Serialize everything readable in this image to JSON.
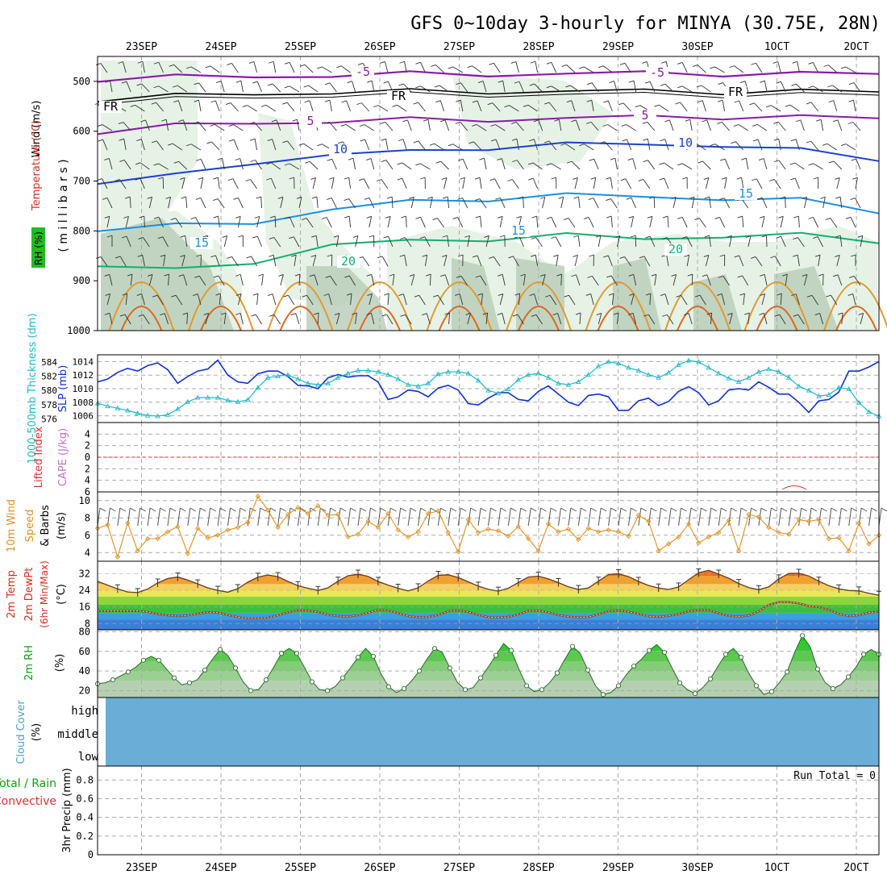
{
  "title": "GFS 0~10day 3-hourly for MINYA (30.75E, 28N)",
  "colors": {
    "grid": "#aaaaaa",
    "slp": "#1030d0",
    "thickness": "#20b8c8",
    "cape": "#c070d0",
    "li": "#e03030",
    "wind": "#e09020",
    "rh": "#10a010",
    "cloud": "#6aaed8",
    "temp_label": "#d03020",
    "dewpt_label": "#e03030",
    "profile_neg5": "#8a1aa8",
    "profile_fr": "#000000",
    "profile_10": "#1a40d0",
    "profile_15": "#1a90e0",
    "profile_20": "#10b070"
  },
  "chart_data": [
    {
      "id": "profile",
      "type": "contour",
      "title": "Temperature / RH / Wind profile",
      "xlabels_top": [
        "23SEP",
        "24SEP",
        "25SEP",
        "26SEP",
        "27SEP",
        "28SEP",
        "29SEP",
        "30SEP",
        "1OCT",
        "2OCT"
      ],
      "xlabels_top_text": [
        "23SEP",
        "24SEP",
        "25SEP",
        "26SEP",
        "27SEP",
        "28SEP",
        "29SEP",
        "30SEP",
        "1OCT",
        "2OCT"
      ],
      "ylabel_rh": "RH (%)",
      "ylabel_temp": "Temperature (°C)",
      "ylabel_wind": "Wind (m/s)",
      "ylabel_pressure": "( m i l l i b a r s )",
      "yticks": [
        "500",
        "600",
        "700",
        "800",
        "900",
        "1000"
      ],
      "ylim": [
        1000,
        450
      ],
      "contour_labels": [
        {
          "text": "-5",
          "level": -5
        },
        {
          "text": "-5",
          "level": -5
        },
        {
          "text": "FR",
          "level": 0
        },
        {
          "text": "FR",
          "level": 0
        },
        {
          "text": "FR",
          "level": 0
        },
        {
          "text": "5",
          "level": 5
        },
        {
          "text": "5",
          "level": 5
        },
        {
          "text": "10",
          "level": 10
        },
        {
          "text": "10",
          "level": 10
        },
        {
          "text": "15",
          "level": 15
        },
        {
          "text": "15",
          "level": 15
        },
        {
          "text": "15",
          "level": 15
        },
        {
          "text": "20",
          "level": 20
        },
        {
          "text": "20",
          "level": 20
        }
      ],
      "isotherm_levels_mb": {
        "m5": [
          495,
          492,
          490,
          488,
          486,
          485,
          485,
          484,
          484,
          485,
          486
        ],
        "fr": [
          535,
          530,
          525,
          522,
          521,
          520,
          520,
          520,
          520,
          520,
          522
        ],
        "p5": [
          600,
          590,
          583,
          580,
          578,
          576,
          574,
          572,
          570,
          572,
          575
        ],
        "p10": [
          705,
          690,
          660,
          650,
          640,
          632,
          628,
          625,
          628,
          640,
          655
        ],
        "p15": [
          800,
          790,
          780,
          760,
          740,
          735,
          730,
          730,
          735,
          740,
          760
        ],
        "p20": [
          870,
          880,
          860,
          830,
          820,
          815,
          810,
          815,
          810,
          810,
          820
        ]
      }
    },
    {
      "id": "slp",
      "type": "line",
      "ylabel_left": "1000-500mb Thickness (dm)",
      "ylabel_right": "SLP (mb)",
      "yticks_left": [
        "576",
        "578",
        "580",
        "582",
        "584"
      ],
      "yticks_right": [
        "1006",
        "1008",
        "1010",
        "1012",
        "1014"
      ],
      "ylim_slp": [
        1005,
        1015
      ],
      "ylim_thickness": [
        575.5,
        585
      ],
      "series": [
        {
          "name": "SLP (mb)",
          "values": [
            1011,
            1011.4,
            1012.4,
            1013,
            1012.6,
            1013.4,
            1013.8,
            1012.8,
            1010.8,
            1011.8,
            1012.6,
            1012.9,
            1014.2,
            1012,
            1011,
            1010.8,
            1012.2,
            1012.6,
            1012.6,
            1011.8,
            1010.5,
            1010.4,
            1010,
            1011.6,
            1012.1,
            1011.7,
            1011.9,
            1011.9,
            1011,
            1008.4,
            1008.8,
            1009.8,
            1009.6,
            1008.8,
            1010.1,
            1010.5,
            1009.8,
            1007.8,
            1007.6,
            1008.6,
            1009.4,
            1009.4,
            1008.4,
            1008.2,
            1009.6,
            1010.4,
            1009.2,
            1008,
            1007.5,
            1009,
            1009.2,
            1008.8,
            1006.8,
            1006.8,
            1008.2,
            1008.6,
            1007.5,
            1008.1,
            1009.6,
            1010.3,
            1009.4,
            1007.6,
            1008.2,
            1009.8,
            1010,
            1009.8,
            1011,
            1010.2,
            1009.2,
            1009.2,
            1008,
            1006.5,
            1008.2,
            1008.4,
            1009.5,
            1012.6,
            1012.6,
            1013.2,
            1014
          ]
        },
        {
          "name": "Thickness (dm)",
          "values": [
            578.2,
            577.8,
            577.5,
            577.2,
            576.8,
            576.5,
            576.4,
            576.6,
            577.4,
            578.4,
            579,
            579,
            579,
            578.6,
            578.4,
            578.7,
            580.4,
            581.8,
            582,
            582.2,
            581.6,
            581,
            580.8,
            581,
            581.8,
            582.4,
            582.8,
            582.8,
            582.6,
            582.2,
            581.6,
            580.8,
            580.6,
            581,
            582.3,
            582.6,
            582.6,
            582.4,
            581.4,
            580,
            579.6,
            580.2,
            581.5,
            582.2,
            582.4,
            581.8,
            581,
            580.8,
            581.2,
            582.2,
            583.4,
            584,
            583.8,
            583.2,
            582.8,
            582.2,
            581.8,
            582.5,
            583.6,
            584.2,
            584,
            583.2,
            582.4,
            581.7,
            581.2,
            581.8,
            582.6,
            583,
            582.6,
            581.8,
            580.6,
            580,
            579.2,
            579.4,
            580.4,
            580.2,
            578.3,
            577,
            576.4
          ]
        }
      ]
    },
    {
      "id": "cape",
      "type": "line",
      "ylabel_left": "Lifted Index",
      "ylabel_right": "CAPE (J/kg)",
      "yticks": [
        "-4",
        "-2",
        "0",
        "2",
        "4",
        "6"
      ],
      "yticks_text": [
        "4",
        "2",
        "0",
        "2",
        "4",
        "6"
      ],
      "ylim": [
        -6,
        6
      ]
    },
    {
      "id": "wind",
      "type": "line",
      "ylabel": "10m Wind Speed & Barbs (m/s)",
      "ylabel_a": "10m Wind",
      "ylabel_b": "Speed",
      "ylabel_c": "& Barbs",
      "ylabel_units": "(m/s)",
      "yticks": [
        "4",
        "6",
        "8",
        "10"
      ],
      "ylim": [
        3,
        11
      ],
      "series": [
        {
          "name": "10m Wind Speed (m/s)",
          "values": [
            6.8,
            7.2,
            3.5,
            7.4,
            4.2,
            5.6,
            5.6,
            6.4,
            7,
            3.9,
            6.8,
            5.7,
            6,
            6.6,
            6.9,
            7.5,
            10.5,
            8.9,
            6.9,
            8.4,
            9.2,
            8.5,
            9.4,
            8.3,
            8.4,
            5.8,
            6.1,
            7.6,
            6.9,
            8.5,
            6.6,
            5.8,
            6.4,
            8.5,
            8.8,
            6.3,
            4.1,
            7.8,
            6.3,
            6.7,
            6.5,
            5.9,
            7,
            5.6,
            4.2,
            7.3,
            6.4,
            6.7,
            5.5,
            6.8,
            6.4,
            6.6,
            6.4,
            5.9,
            8.3,
            7.6,
            4.2,
            5,
            5.8,
            7.3,
            5.1,
            5.8,
            6.3,
            7.7,
            4.2,
            8.4,
            8.1,
            6.9,
            6.3,
            6.1,
            7.8,
            7.6,
            7.8,
            5.6,
            5.7,
            4.2,
            7.4,
            5,
            6
          ]
        }
      ]
    },
    {
      "id": "temp",
      "type": "area",
      "ylabel": "2m Temp 2m DewPt (6hr Min/Max) (°C)",
      "ylabel_a": "2m Temp",
      "ylabel_b": "2m DewPt",
      "ylabel_c": "(6hr Min/Max)",
      "ylabel_units": "(°C)",
      "yticks": [
        "8",
        "16",
        "24",
        "32"
      ],
      "ylim": [
        5,
        38
      ],
      "series": [
        {
          "name": "2m Temp (°C)",
          "values": [
            28.3,
            26.5,
            24.7,
            23.2,
            22.9,
            24.6,
            27.5,
            29.7,
            30.4,
            28.9,
            27.1,
            25.2,
            24,
            23.1,
            24.8,
            27.9,
            30.3,
            31.4,
            30.6,
            28.3,
            26.2,
            25,
            23.9,
            25.2,
            28.4,
            31,
            31.8,
            30.7,
            28.3,
            26.5,
            25,
            23.7,
            25.2,
            28.5,
            31.2,
            31.5,
            30.1,
            28.1,
            26,
            24.5,
            23.6,
            25,
            27.7,
            30.4,
            30.8,
            29.5,
            27.7,
            25.7,
            24.4,
            25.1,
            28.4,
            31.6,
            32,
            30.6,
            28.3,
            26.3,
            25.1,
            24.4,
            25.6,
            29.1,
            32.4,
            33.6,
            31.8,
            29.8,
            27.3,
            25.3,
            24.3,
            25.6,
            29.5,
            32.1,
            32.2,
            30.9,
            28.4,
            26.2,
            24.7,
            23.9,
            23.7,
            22.6,
            21.6
          ]
        },
        {
          "name": "2m DewPt (°C)",
          "values": [
            14,
            14,
            14,
            14,
            14,
            13.6,
            12.6,
            12,
            11.6,
            11.9,
            12.8,
            13.5,
            13.3,
            12.1,
            11.1,
            10.5,
            10.5,
            10.8,
            12,
            13.4,
            14.4,
            14.3,
            13.6,
            12.2,
            11.6,
            11.4,
            12,
            13.2,
            14.5,
            14.4,
            13,
            11.6,
            11,
            11.1,
            12.2,
            13.9,
            14.3,
            13.6,
            12.2,
            11.1,
            10.9,
            11.2,
            12.4,
            14.2,
            14.2,
            13.4,
            12.1,
            11.3,
            11,
            11.1,
            12.5,
            13.9,
            14.3,
            13.7,
            12.7,
            11.5,
            11.2,
            11.7,
            12.6,
            13.9,
            14.5,
            14.4,
            13,
            11.7,
            11.4,
            11.8,
            13.9,
            17,
            18.3,
            18.3,
            17.7,
            16.5,
            15.9,
            14.6,
            12.7,
            11.6,
            12,
            13.3,
            13.7
          ]
        }
      ]
    },
    {
      "id": "rh",
      "type": "area",
      "ylabel": "2m RH (%)",
      "ylabel_a": "2m RH",
      "ylabel_units": "(%)",
      "yticks": [
        "20",
        "40",
        "60",
        "80"
      ],
      "ylim": [
        13,
        82
      ],
      "series": [
        {
          "name": "2m RH (%)",
          "values": [
            27,
            28,
            31,
            35,
            39,
            44,
            51,
            55,
            51,
            42,
            33,
            26,
            28,
            31,
            41,
            52,
            62,
            56,
            43,
            29,
            20,
            21,
            31,
            44,
            58,
            63,
            58,
            44,
            29,
            21,
            20,
            24,
            33,
            43,
            54,
            63,
            55,
            37,
            24,
            18,
            22,
            30,
            40,
            52,
            63,
            59,
            43,
            28,
            21,
            23,
            33,
            44,
            56,
            68,
            61,
            42,
            25,
            19,
            21,
            28,
            38,
            52,
            65,
            58,
            41,
            25,
            16,
            18,
            25,
            36,
            45,
            52,
            61,
            67,
            59,
            43,
            28,
            21,
            17,
            23,
            32,
            45,
            57,
            63,
            54,
            38,
            25,
            16,
            19,
            28,
            39,
            59,
            76,
            65,
            42,
            28,
            22,
            26,
            34,
            44,
            57,
            62,
            57
          ]
        }
      ]
    },
    {
      "id": "cloud",
      "type": "heatmap",
      "ylabel_a": "Cloud Cover",
      "ylabel_units": "(%)",
      "yticks": [
        "high",
        "middle",
        "low"
      ],
      "values": [
        [
          100
        ],
        [
          100
        ],
        [
          100
        ]
      ]
    },
    {
      "id": "precip",
      "type": "bar",
      "ylabel_a": "Total / Rain",
      "ylabel_b": "Convective",
      "ylabel": "3hr Precip (mm)",
      "yticks": [
        "0",
        "0.2",
        "0.4",
        "0.6",
        "0.8"
      ],
      "ylim": [
        0,
        0.95
      ],
      "run_total": "Run Total = 0",
      "xlabels_bottom": [
        "23SEP",
        "24SEP",
        "25SEP",
        "26SEP",
        "27SEP",
        "28SEP",
        "29SEP",
        "30SEP",
        "1OCT",
        "2OCT"
      ],
      "xlabels_bottom_text": [
        "23SEP",
        "24SEP",
        "25SEP",
        "26SEP",
        "27SEP",
        "28SEP",
        "29SEP",
        "30SEP",
        "1OCT",
        "2OCT"
      ],
      "values": [
        0,
        0,
        0,
        0,
        0,
        0,
        0,
        0,
        0,
        0
      ]
    }
  ]
}
